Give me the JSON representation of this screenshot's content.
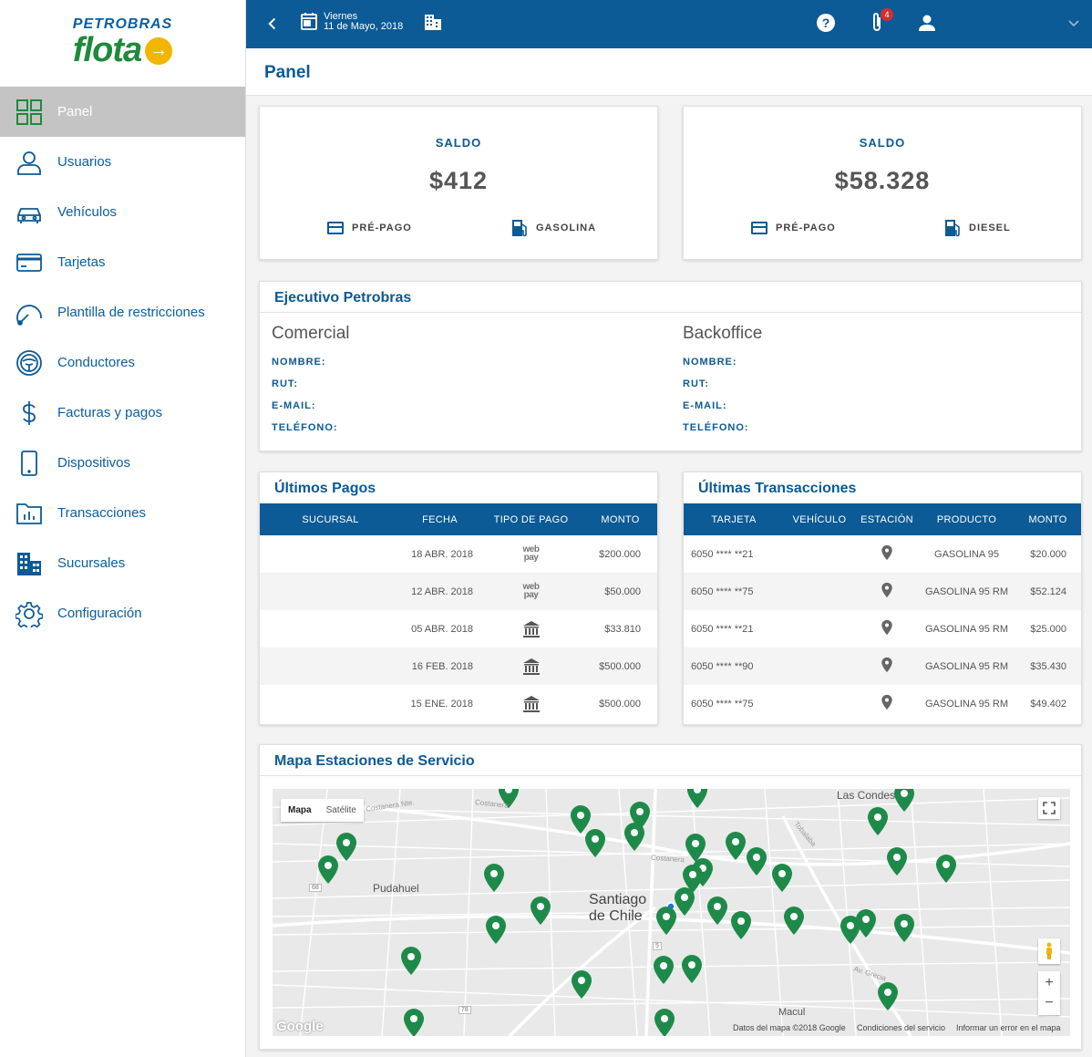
{
  "brand": {
    "top": "PETROBRAS",
    "word": "flota"
  },
  "sidebar": {
    "items": [
      {
        "label": "Panel",
        "icon": "grid-icon"
      },
      {
        "label": "Usuarios",
        "icon": "user-icon"
      },
      {
        "label": "Vehículos",
        "icon": "car-icon"
      },
      {
        "label": "Tarjetas",
        "icon": "card-icon"
      },
      {
        "label": "Plantilla de restricciones",
        "icon": "gauge-icon"
      },
      {
        "label": "Conductores",
        "icon": "steering-wheel-icon"
      },
      {
        "label": "Facturas y pagos",
        "icon": "dollar-icon"
      },
      {
        "label": "Dispositivos",
        "icon": "device-icon"
      },
      {
        "label": "Transacciones",
        "icon": "chart-folder-icon"
      },
      {
        "label": "Sucursales",
        "icon": "building-icon"
      },
      {
        "label": "Configuración",
        "icon": "gear-icon"
      }
    ]
  },
  "topbar": {
    "day": "Viernes",
    "date": "11 de Mayo, 2018",
    "notifications": "4"
  },
  "page": {
    "title": "Panel"
  },
  "saldo": [
    {
      "label": "SALDO",
      "amount": "$412",
      "type": "PRÉ-PAGO",
      "fuel": "GASOLINA"
    },
    {
      "label": "SALDO",
      "amount": "$58.328",
      "type": "PRÉ-PAGO",
      "fuel": "DIESEL"
    }
  ],
  "ejecutivo": {
    "title": "Ejecutivo Petrobras",
    "comercial": "Comercial",
    "backoffice": "Backoffice",
    "fields": {
      "nombre": "NOMBRE:",
      "rut": "RUT:",
      "email": "E-MAIL:",
      "telefono": "TELÉFONO:"
    }
  },
  "pagos": {
    "title": "Últimos Pagos",
    "headers": [
      "SUCURSAL",
      "FECHA",
      "TIPO DE PAGO",
      "MONTO"
    ],
    "rows": [
      {
        "sucursal": "",
        "fecha": "18 ABR. 2018",
        "tipo": "webpay",
        "monto": "$200.000"
      },
      {
        "sucursal": "",
        "fecha": "12 ABR. 2018",
        "tipo": "webpay",
        "monto": "$50.000"
      },
      {
        "sucursal": "",
        "fecha": "05 ABR. 2018",
        "tipo": "bank",
        "monto": "$33.810"
      },
      {
        "sucursal": "",
        "fecha": "16 FEB. 2018",
        "tipo": "bank",
        "monto": "$500.000"
      },
      {
        "sucursal": "",
        "fecha": "15 ENE. 2018",
        "tipo": "bank",
        "monto": "$500.000"
      }
    ],
    "webpay_top": "web",
    "webpay_bottom": "pay"
  },
  "transacciones": {
    "title": "Últimas Transacciones",
    "headers": [
      "TARJETA",
      "VEHÍCULO",
      "ESTACIÓN",
      "PRODUCTO",
      "MONTO"
    ],
    "rows": [
      {
        "tarjeta": "6050 **** **21",
        "producto": "GASOLINA 95",
        "monto": "$20.000"
      },
      {
        "tarjeta": "6050 **** **75",
        "producto": "GASOLINA 95 RM",
        "monto": "$52.124"
      },
      {
        "tarjeta": "6050 **** **21",
        "producto": "GASOLINA 95 RM",
        "monto": "$25.000"
      },
      {
        "tarjeta": "6050 **** **90",
        "producto": "GASOLINA 95 RM",
        "monto": "$35.430"
      },
      {
        "tarjeta": "6050 **** **75",
        "producto": "GASOLINA 95 RM",
        "monto": "$49.402"
      }
    ]
  },
  "mapa": {
    "title": "Mapa Estaciones de Servicio",
    "btn_map": "Mapa",
    "btn_sat": "Satélite",
    "city_line1": "Santiago",
    "city_line2": "de Chile",
    "places": {
      "pudahuel": "Pudahuel",
      "las_condes": "Las Condes",
      "macul": "Macul",
      "costanera_n": "Costanera Nte.",
      "costanera": "Costanera",
      "tobalaba": "Tobalaba",
      "av_grecia": "Av. Grecia"
    },
    "google": "Google",
    "footer": {
      "datos": "Datos del mapa ©2018 Google",
      "condiciones": "Condiciones del servicio",
      "informar": "Informar un error en el mapa"
    },
    "roads": {
      "r68": "68",
      "r5": "5",
      "r78": "78"
    },
    "marker_color": "#1e8a4a",
    "marker_count": 41
  },
  "colors": {
    "brand_blue": "#0c5a96",
    "brand_green": "#1e8a3c",
    "accent_yellow": "#f2b600"
  }
}
